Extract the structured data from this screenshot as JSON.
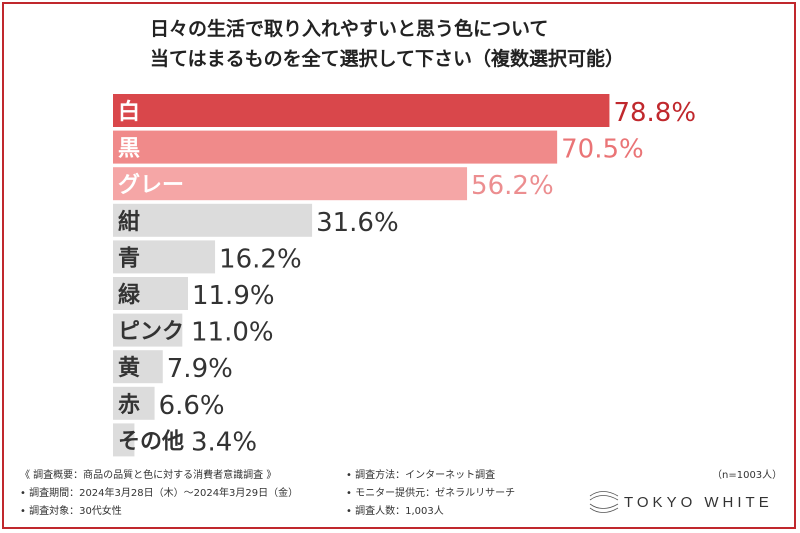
{
  "title_lines": [
    "日々の生活で取り入れやすいと思う色について",
    "当てはまるものを全て選択して下さい（複数選択可能）"
  ],
  "chart_data": {
    "type": "bar",
    "orientation": "horizontal",
    "categories": [
      "白",
      "黒",
      "グレー",
      "紺",
      "青",
      "緑",
      "ピンク",
      "黄",
      "赤",
      "その他"
    ],
    "values": [
      78.8,
      70.5,
      56.2,
      31.6,
      16.2,
      11.9,
      11.0,
      7.9,
      6.6,
      3.4
    ],
    "value_labels": [
      "78.8%",
      "70.5%",
      "56.2%",
      "31.6%",
      "16.2%",
      "11.9%",
      "11.0%",
      "7.9%",
      "6.6%",
      "3.4%"
    ],
    "xlim": [
      0,
      100
    ],
    "grid": false,
    "legend": "none",
    "bar_colors": [
      "#d9474b",
      "#f08a8a",
      "#f5a6a6",
      "#dcdcdc",
      "#dcdcdc",
      "#dcdcdc",
      "#dcdcdc",
      "#dcdcdc",
      "#dcdcdc",
      "#dcdcdc"
    ],
    "category_label_colors": [
      "#ffffff",
      "#ffffff",
      "#ffffff",
      "#333333",
      "#333333",
      "#333333",
      "#333333",
      "#333333",
      "#333333",
      "#333333"
    ],
    "value_label_colors": [
      "#c0282d",
      "#ea7476",
      "#ec8e90",
      "#333333",
      "#333333",
      "#333333",
      "#333333",
      "#333333",
      "#333333",
      "#333333"
    ]
  },
  "sample_size": "（n=1003人）",
  "footer": {
    "left": [
      "《 調査概要：商品の品質と色に対する消費者意識調査 》",
      "• 調査期間：2024年3月28日（木）〜2024年3月29日（金）",
      "• 調査対象：30代女性"
    ],
    "right": [
      "• 調査方法：インターネット調査",
      "• モニター提供元：ゼネラルリサーチ",
      "• 調査人数：1,003人"
    ]
  },
  "logo": {
    "text": "TOKYO WHITE",
    "icon": "tokyo-white-logo-icon"
  },
  "colors": {
    "accent": "#c0282d"
  }
}
